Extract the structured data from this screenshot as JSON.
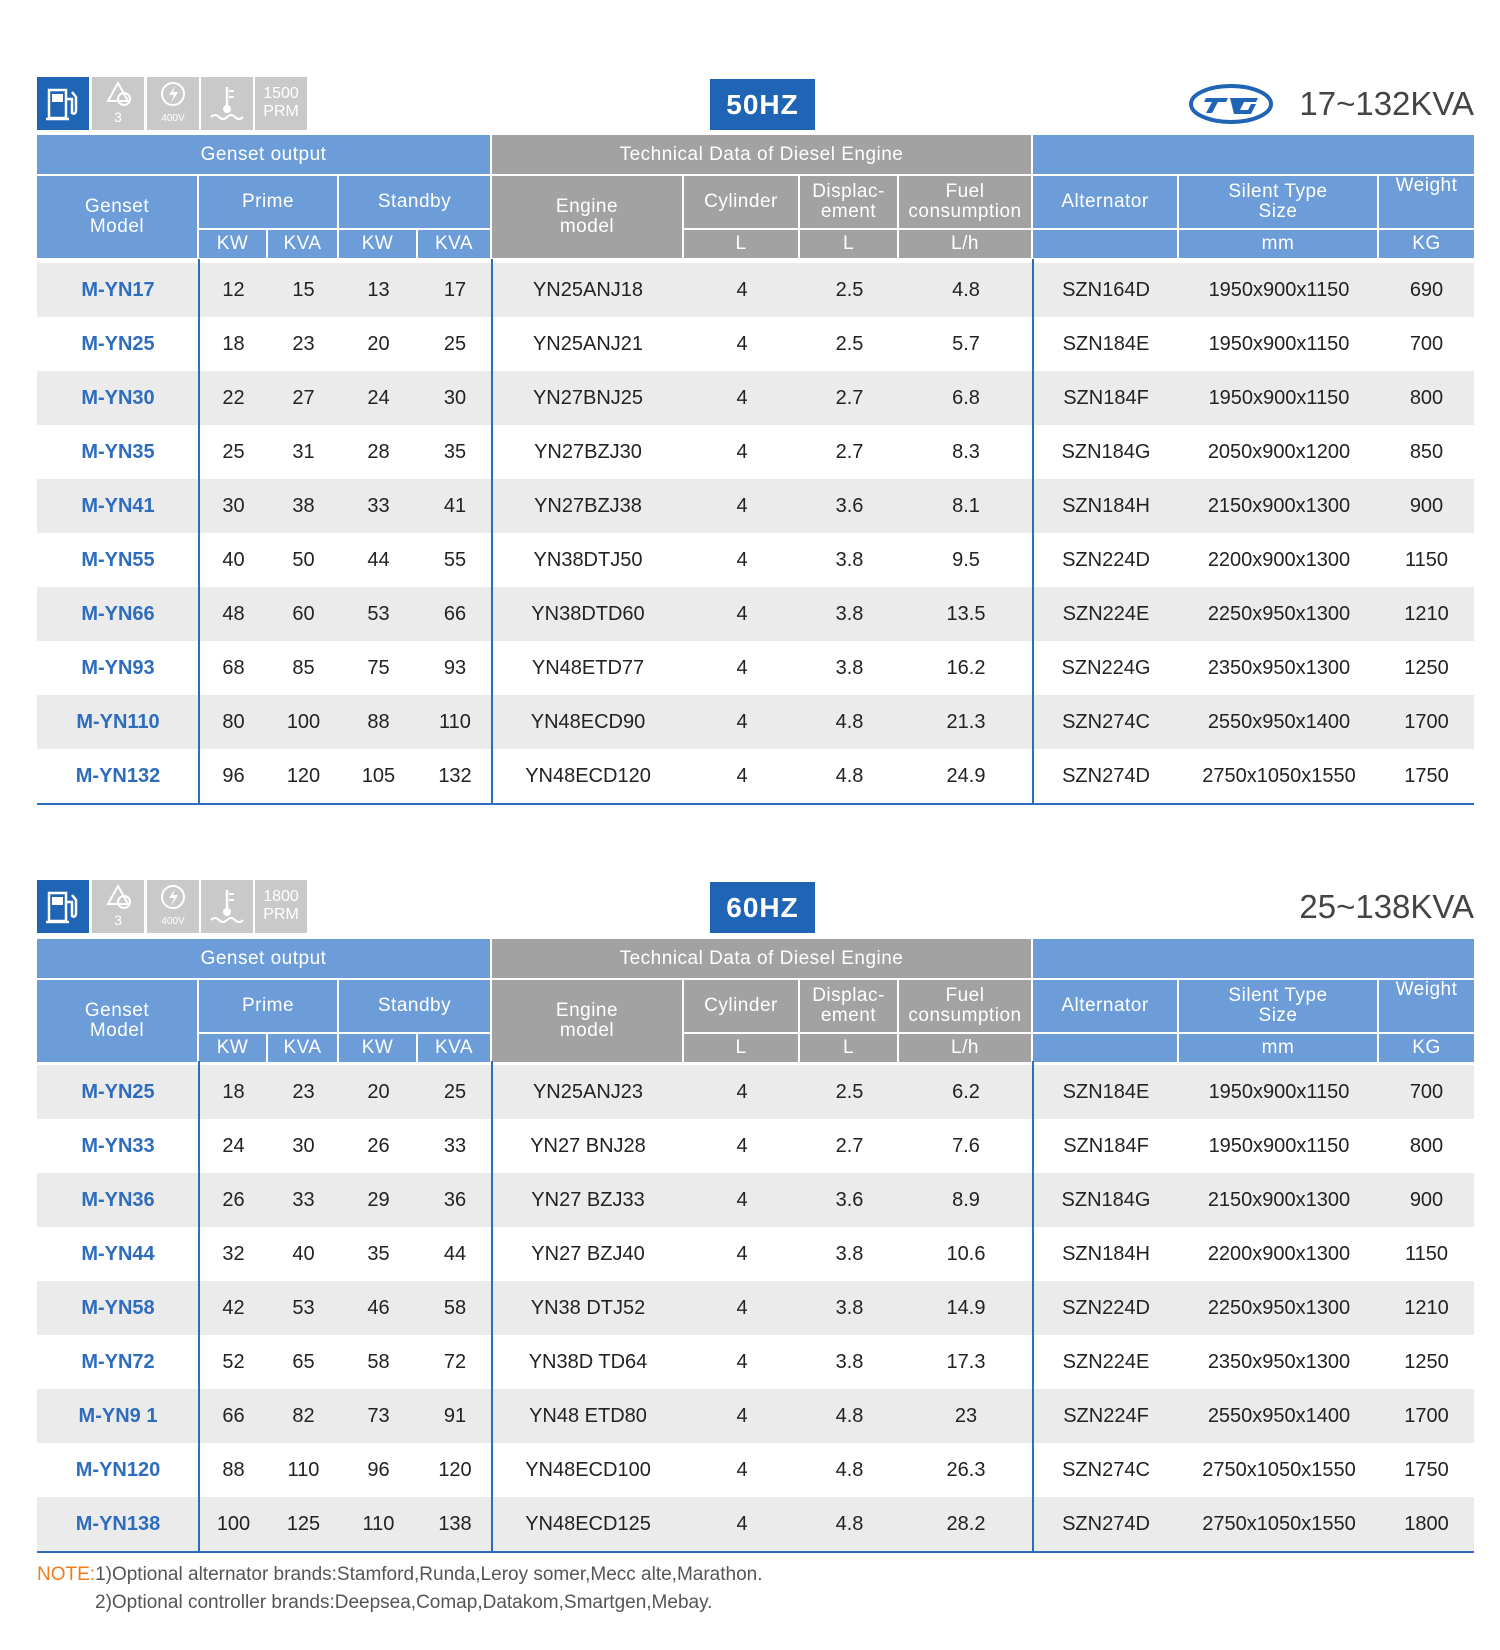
{
  "sections": [
    {
      "icons": {
        "phase": "3",
        "voltage": "400V",
        "speed": "1500",
        "speed_unit": "PRM"
      },
      "frequency": "50HZ",
      "range": "17~132KVA",
      "header": {
        "groups": [
          "Genset output",
          "Technical Data of Diesel Engine"
        ],
        "columns": [
          "Genset\nModel",
          "Prime",
          "Standby",
          "Engine\nmodel",
          "Cylinder",
          "Displac-\nement",
          "Fuel\nconsumption",
          "Alternator",
          "Silent Type\nSize",
          "Weight"
        ],
        "units": [
          "KW",
          "KVA",
          "KW",
          "KVA",
          "L",
          "L",
          "L/h",
          "mm",
          "KG"
        ]
      },
      "rows": [
        [
          "M-YN17",
          12,
          15,
          13,
          17,
          "YN25ANJ18",
          4,
          2.5,
          4.8,
          "SZN164D",
          "1950x900x1150",
          690
        ],
        [
          "M-YN25",
          18,
          23,
          20,
          25,
          "YN25ANJ21",
          4,
          2.5,
          5.7,
          "SZN184E",
          "1950x900x1150",
          700
        ],
        [
          "M-YN30",
          22,
          27,
          24,
          30,
          "YN27BNJ25",
          4,
          2.7,
          6.8,
          "SZN184F",
          "1950x900x1150",
          800
        ],
        [
          "M-YN35",
          25,
          31,
          28,
          35,
          "YN27BZJ30",
          4,
          2.7,
          8.3,
          "SZN184G",
          "2050x900x1200",
          850
        ],
        [
          "M-YN41",
          30,
          38,
          33,
          41,
          "YN27BZJ38",
          4,
          3.6,
          8.1,
          "SZN184H",
          "2150x900x1300",
          900
        ],
        [
          "M-YN55",
          40,
          50,
          44,
          55,
          "YN38DTJ50",
          4,
          3.8,
          9.5,
          "SZN224D",
          "2200x900x1300",
          1150
        ],
        [
          "M-YN66",
          48,
          60,
          53,
          66,
          "YN38DTD60",
          4,
          3.8,
          13.5,
          "SZN224E",
          "2250x950x1300",
          1210
        ],
        [
          "M-YN93",
          68,
          85,
          75,
          93,
          "YN48ETD77",
          4,
          3.8,
          16.2,
          "SZN224G",
          "2350x950x1300",
          1250
        ],
        [
          "M-YN110",
          80,
          100,
          88,
          110,
          "YN48ECD90",
          4,
          4.8,
          21.3,
          "SZN274C",
          "2550x950x1400",
          1700
        ],
        [
          "M-YN132",
          96,
          120,
          105,
          132,
          "YN48ECD120",
          4,
          4.8,
          24.9,
          "SZN274D",
          "2750x1050x1550",
          1750
        ]
      ]
    },
    {
      "icons": {
        "phase": "3",
        "voltage": "400V",
        "speed": "1800",
        "speed_unit": "PRM"
      },
      "frequency": "60HZ",
      "range": "25~138KVA",
      "header": {
        "groups": [
          "Genset output",
          "Technical Data of Diesel Engine"
        ],
        "columns": [
          "Genset\nModel",
          "Prime",
          "Standby",
          "Engine\nmodel",
          "Cylinder",
          "Displac-\nement",
          "Fuel\nconsumption",
          "Alternator",
          "Silent Type\nSize",
          "Weight"
        ],
        "units": [
          "KW",
          "KVA",
          "KW",
          "KVA",
          "L",
          "L",
          "L/h",
          "mm",
          "KG"
        ]
      },
      "rows": [
        [
          "M-YN25",
          18,
          23,
          20,
          25,
          "YN25ANJ23",
          4,
          2.5,
          6.2,
          "SZN184E",
          "1950x900x1150",
          700
        ],
        [
          "M-YN33",
          24,
          30,
          26,
          33,
          "YN27 BNJ28",
          4,
          2.7,
          7.6,
          "SZN184F",
          "1950x900x1150",
          800
        ],
        [
          "M-YN36",
          26,
          33,
          29,
          36,
          "YN27 BZJ33",
          4,
          3.6,
          8.9,
          "SZN184G",
          "2150x900x1300",
          900
        ],
        [
          "M-YN44",
          32,
          40,
          35,
          44,
          "YN27 BZJ40",
          4,
          3.8,
          10.6,
          "SZN184H",
          "2200x900x1300",
          1150
        ],
        [
          "M-YN58",
          42,
          53,
          46,
          58,
          "YN38 DTJ52",
          4,
          3.8,
          14.9,
          "SZN224D",
          "2250x950x1300",
          1210
        ],
        [
          "M-YN72",
          52,
          65,
          58,
          72,
          "YN38D TD64",
          4,
          3.8,
          17.3,
          "SZN224E",
          "2350x950x1300",
          1250
        ],
        [
          "M-YN9 1",
          66,
          82,
          73,
          91,
          "YN48 ETD80",
          4,
          4.8,
          23,
          "SZN224F",
          "2550x950x1400",
          1700
        ],
        [
          "M-YN120",
          88,
          110,
          96,
          120,
          "YN48ECD100",
          4,
          4.8,
          26.3,
          "SZN274C",
          "2750x1050x1550",
          1750
        ],
        [
          "M-YN138",
          100,
          125,
          110,
          138,
          "YN48ECD125",
          4,
          4.8,
          28.2,
          "SZN274D",
          "2750x1050x1550",
          1800
        ]
      ]
    }
  ],
  "note": {
    "label": "NOTE:",
    "lines": [
      "1)Optional alternator brands:Stamford,Runda,Leroy somer,Mecc alte,Marathon.",
      "2)Optional controller brands:Deepsea,Comap,Datakom,Smartgen,Mebay."
    ]
  }
}
